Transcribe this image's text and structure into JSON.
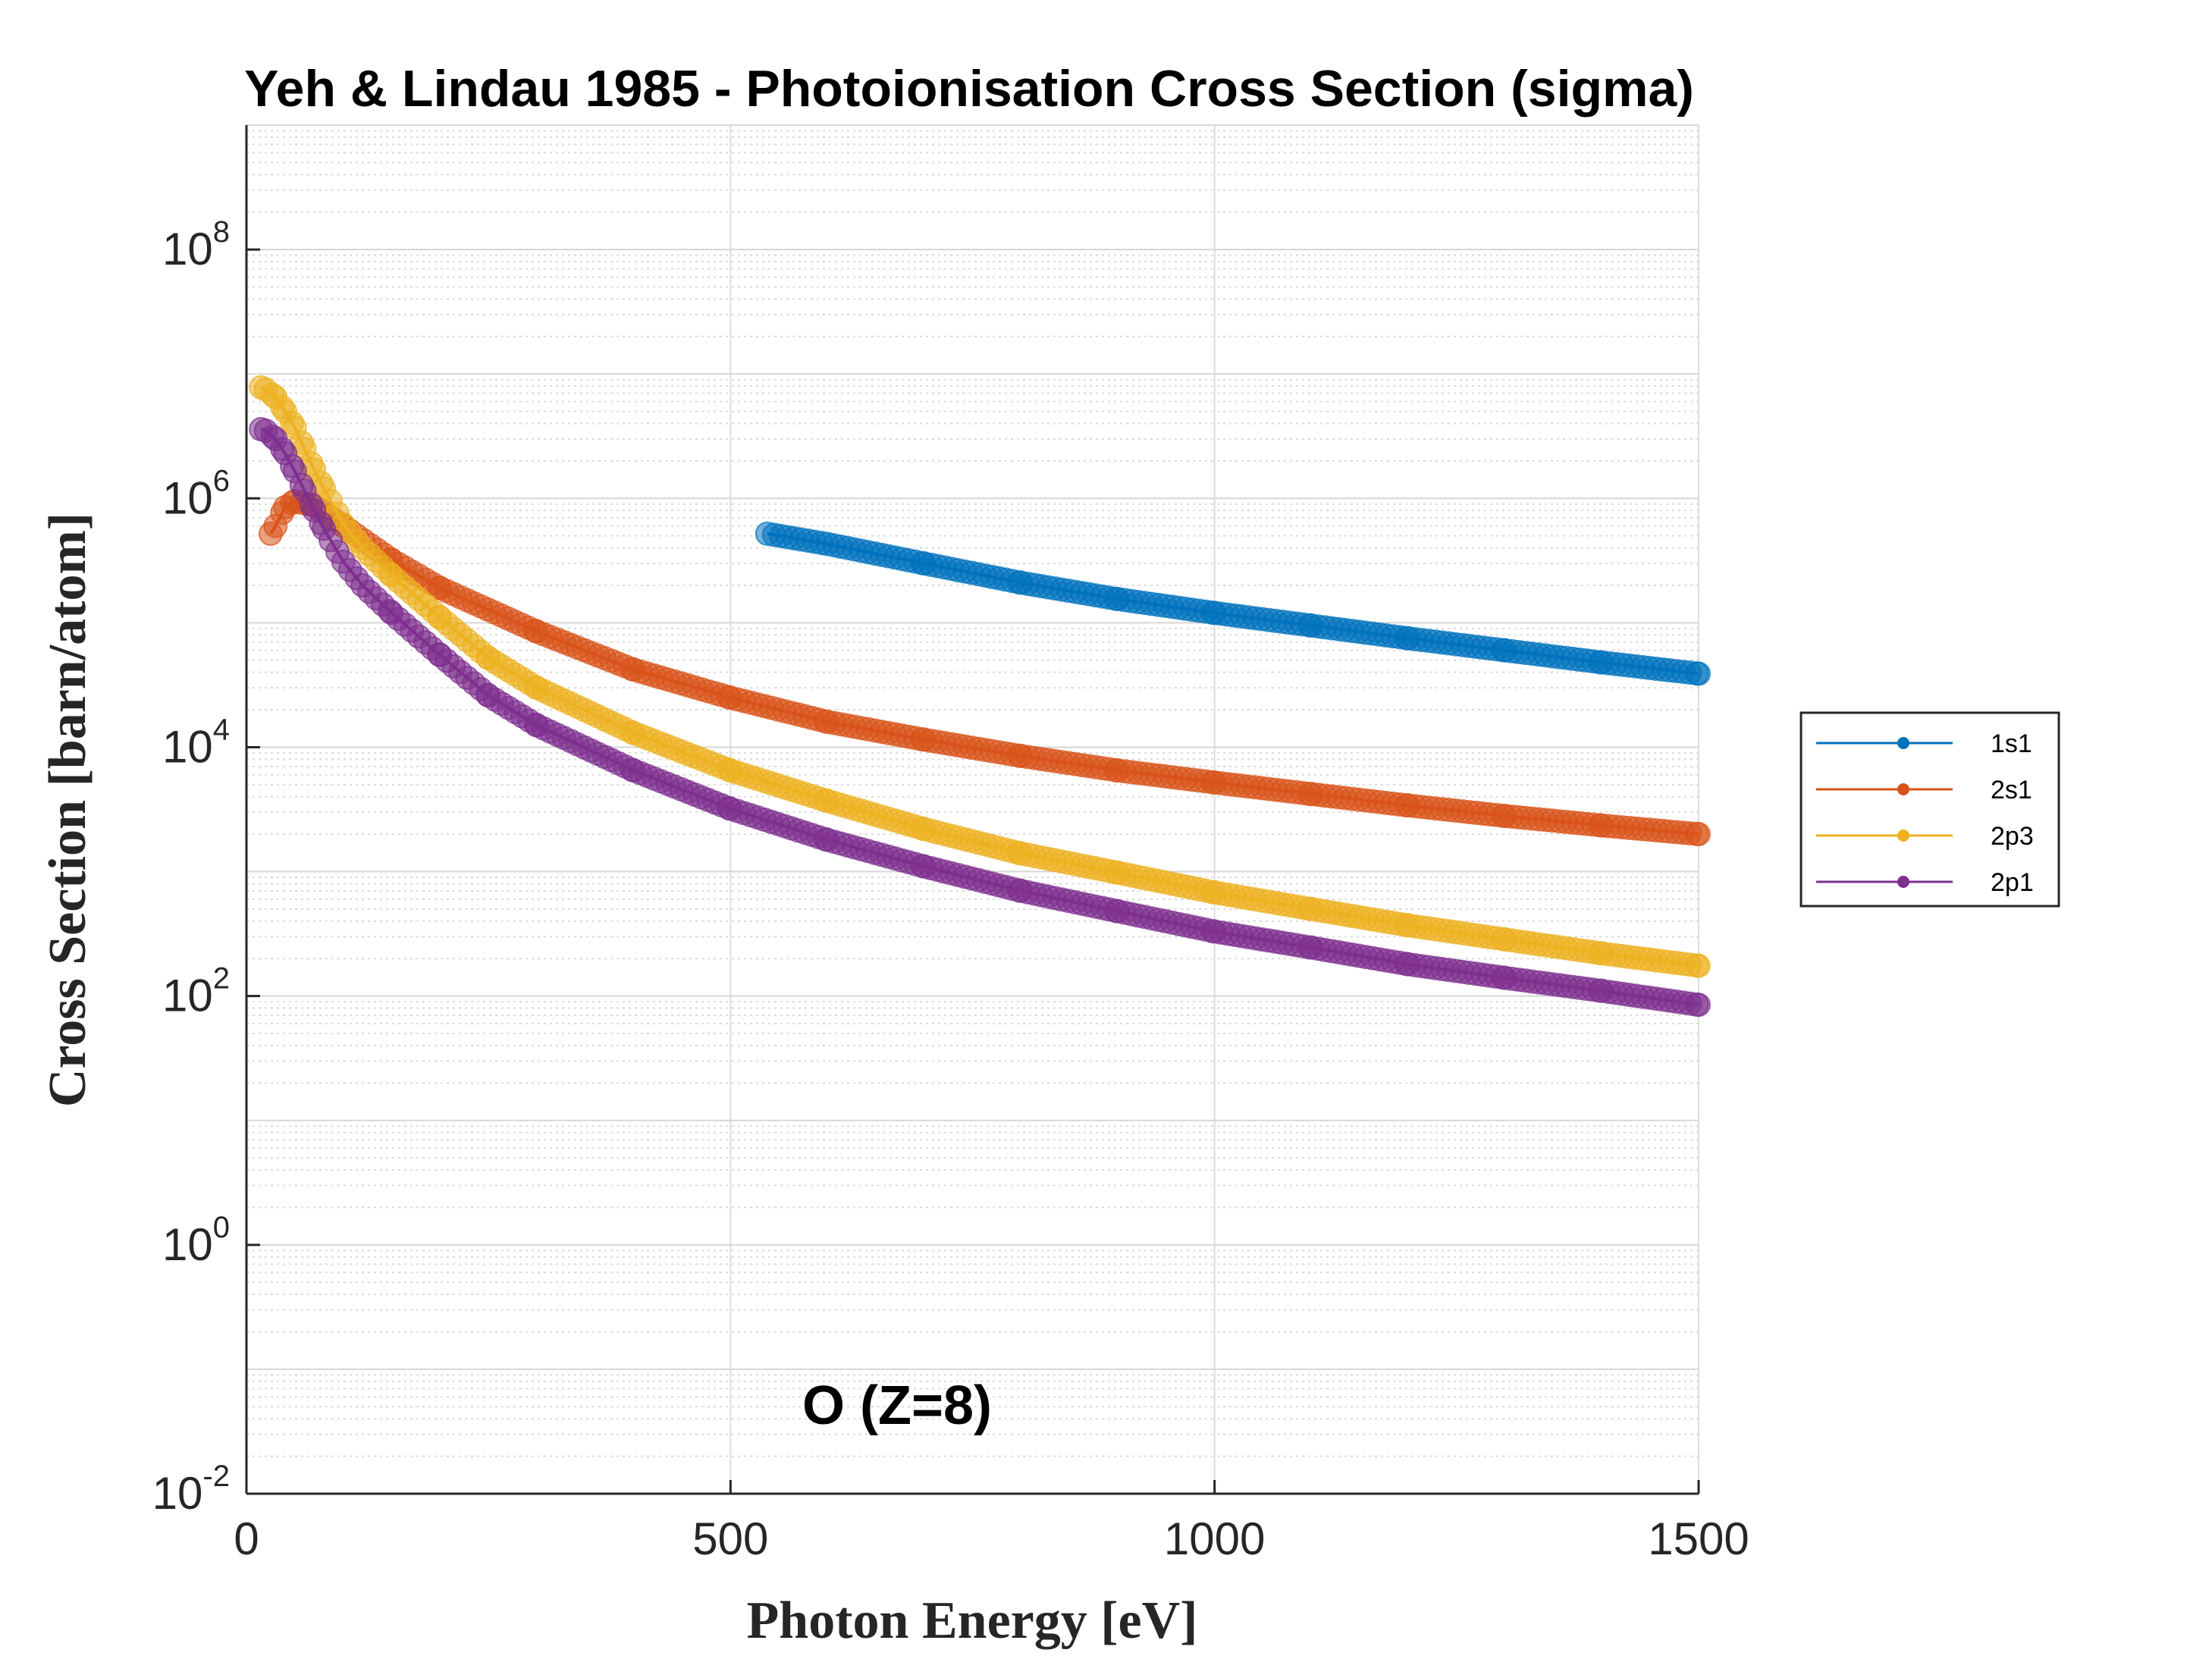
{
  "chart_data": {
    "type": "scatter",
    "title": "Yeh & Lindau 1985 - Photoionisation Cross Section (sigma)",
    "xlabel": "Photon Energy [eV]",
    "ylabel": "Cross Section [barn/atom]",
    "annotation": "O (Z=8)",
    "xlim": [
      0,
      1500
    ],
    "ylim": [
      0.01,
      1000000000
    ],
    "yscale": "log",
    "grid": true,
    "minor_grid": true,
    "legend_position": "outside-right",
    "x_ticks": [
      {
        "value": 0,
        "label": "0"
      },
      {
        "value": 500,
        "label": "500"
      },
      {
        "value": 1000,
        "label": "1000"
      },
      {
        "value": 1500,
        "label": "1500"
      }
    ],
    "y_ticks": [
      {
        "value": 0.01,
        "base": "10",
        "exp": "-2"
      },
      {
        "value": 1,
        "base": "10",
        "exp": "0"
      },
      {
        "value": 100,
        "base": "10",
        "exp": "2"
      },
      {
        "value": 10000,
        "base": "10",
        "exp": "4"
      },
      {
        "value": 1000000,
        "base": "10",
        "exp": "6"
      },
      {
        "value": 100000000,
        "base": "10",
        "exp": "8"
      }
    ],
    "series": [
      {
        "name": "1s1",
        "color": "#0072BD",
        "x": [
          538,
          600,
          700,
          800,
          900,
          1000,
          1100,
          1200,
          1300,
          1400,
          1500
        ],
        "y": [
          520000,
          430000,
          300000,
          210000,
          155000,
          120000,
          95000,
          75000,
          60000,
          48000,
          39000
        ]
      },
      {
        "name": "2s1",
        "color": "#D95319",
        "x": [
          25,
          30,
          40,
          50,
          70,
          100,
          150,
          200,
          300,
          400,
          500,
          600,
          700,
          800,
          900,
          1000,
          1100,
          1200,
          1300,
          1400,
          1500
        ],
        "y": [
          520000,
          600000,
          850000,
          950000,
          870000,
          600000,
          320000,
          190000,
          85000,
          42000,
          25000,
          16000,
          11500,
          8500,
          6500,
          5200,
          4200,
          3400,
          2800,
          2350,
          2000
        ]
      },
      {
        "name": "2p3",
        "color": "#EDB120",
        "x": [
          15,
          20,
          30,
          40,
          50,
          60,
          70,
          80,
          100,
          120,
          150,
          200,
          250,
          300,
          400,
          500,
          600,
          700,
          800,
          900,
          1000,
          1100,
          1200,
          1300,
          1400,
          1500
        ],
        "y": [
          7800000,
          7500000,
          6500000,
          5000000,
          3700000,
          2500000,
          1700000,
          1200000,
          620000,
          400000,
          240000,
          110000,
          52000,
          30000,
          13000,
          6500,
          3700,
          2200,
          1400,
          980,
          680,
          500,
          370,
          285,
          220,
          175
        ]
      },
      {
        "name": "2p1",
        "color": "#7E2F8E",
        "x": [
          15,
          20,
          30,
          40,
          50,
          60,
          70,
          80,
          100,
          120,
          150,
          200,
          250,
          300,
          400,
          500,
          600,
          700,
          800,
          900,
          1000,
          1100,
          1200,
          1300,
          1400,
          1500
        ],
        "y": [
          3600000,
          3500000,
          3000000,
          2300000,
          1650000,
          1150000,
          800000,
          570000,
          310000,
          200000,
          120000,
          55000,
          26000,
          15000,
          6500,
          3200,
          1800,
          1100,
          700,
          480,
          330,
          245,
          180,
          140,
          110,
          85
        ]
      }
    ]
  }
}
